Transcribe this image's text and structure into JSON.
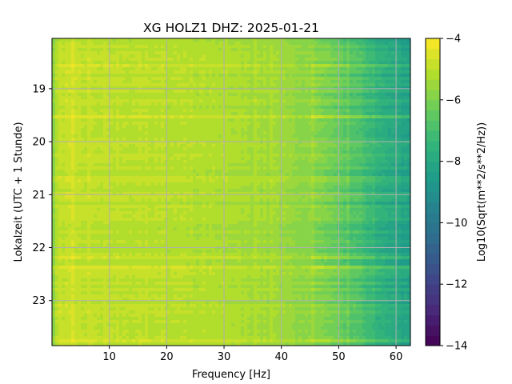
{
  "chart_data": {
    "type": "heatmap",
    "title": "XG HOLZ1  DHZ: 2025-01-21",
    "xlabel": "Frequency [Hz]",
    "ylabel": "Lokalzeit (UTC + 1 Stunde)",
    "xlim": [
      0,
      62.5
    ],
    "ylim": [
      18.05,
      23.85
    ],
    "y_inverted": true,
    "xticks": [
      10,
      20,
      30,
      40,
      50,
      60
    ],
    "yticks": [
      19,
      20,
      21,
      22,
      23
    ],
    "grid": true,
    "colormap": "viridis",
    "colorbar": {
      "label": "Log10(Sqrt(m**2/s**2/Hz))",
      "range": [
        -14,
        -4
      ],
      "ticks": [
        -4,
        -6,
        -8,
        -10,
        -12,
        -14
      ],
      "levels": 30
    },
    "value_profile": {
      "frequency_hz": [
        0,
        1,
        3,
        10,
        20,
        30,
        40,
        45,
        50,
        55,
        58,
        60,
        62.5
      ],
      "log10_amplitude": [
        -6.0,
        -4.9,
        -4.9,
        -5.0,
        -5.1,
        -5.25,
        -5.5,
        -5.8,
        -6.4,
        -7.2,
        -7.8,
        -8.0,
        -8.3
      ]
    }
  },
  "colors": {
    "viridis_stops": [
      "#440154",
      "#482878",
      "#3e4989",
      "#31688e",
      "#26828e",
      "#1f9e89",
      "#35b779",
      "#6ece58",
      "#b5de2b",
      "#fde725"
    ],
    "grid": "#b0b0b0"
  }
}
